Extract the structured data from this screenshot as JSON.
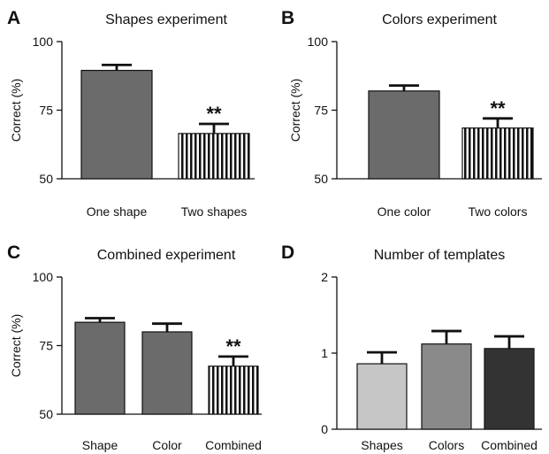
{
  "chart_data": [
    {
      "panel": "A",
      "type": "bar",
      "title": "Shapes experiment",
      "ylabel": "Correct (%)",
      "xlabel": "",
      "ylim": [
        50,
        100
      ],
      "yticks": [
        50,
        75,
        100
      ],
      "categories": [
        "One shape",
        "Two shapes"
      ],
      "values": [
        89.5,
        66.5
      ],
      "errors": [
        2.0,
        3.5
      ],
      "fills": [
        "solid",
        "stripes"
      ],
      "annotations": [
        "",
        "**"
      ]
    },
    {
      "panel": "B",
      "type": "bar",
      "title": "Colors experiment",
      "ylabel": "Correct (%)",
      "xlabel": "",
      "ylim": [
        50,
        100
      ],
      "yticks": [
        50,
        75,
        100
      ],
      "categories": [
        "One color",
        "Two colors"
      ],
      "values": [
        82,
        68.5
      ],
      "errors": [
        2.0,
        3.5
      ],
      "fills": [
        "solid",
        "stripes"
      ],
      "annotations": [
        "",
        "**"
      ]
    },
    {
      "panel": "C",
      "type": "bar",
      "title": "Combined experiment",
      "ylabel": "Correct (%)",
      "xlabel": "",
      "ylim": [
        50,
        100
      ],
      "yticks": [
        50,
        75,
        100
      ],
      "categories": [
        "Shape",
        "Color",
        "Combined"
      ],
      "values": [
        83.5,
        80,
        67.5
      ],
      "errors": [
        1.5,
        3.0,
        3.5
      ],
      "fills": [
        "solid",
        "solid",
        "stripes"
      ],
      "annotations": [
        "",
        "",
        "**"
      ]
    },
    {
      "panel": "D",
      "type": "bar",
      "title": "Number of templates",
      "ylabel": "",
      "xlabel": "",
      "ylim": [
        0,
        2
      ],
      "yticks": [
        0,
        1,
        2
      ],
      "categories": [
        "Shapes",
        "Colors",
        "Combined"
      ],
      "values": [
        0.86,
        1.12,
        1.06
      ],
      "errors": [
        0.15,
        0.17,
        0.16
      ],
      "fills": [
        "light-gray",
        "mid-gray",
        "dark-gray"
      ],
      "annotations": [
        "",
        "",
        ""
      ]
    }
  ],
  "colors": {
    "solid": "#6b6b6b",
    "light-gray": "#c6c6c6",
    "mid-gray": "#8a8a8a",
    "dark-gray": "#333333",
    "stripe": "#111111",
    "stripe_bg": "#ffffff"
  }
}
